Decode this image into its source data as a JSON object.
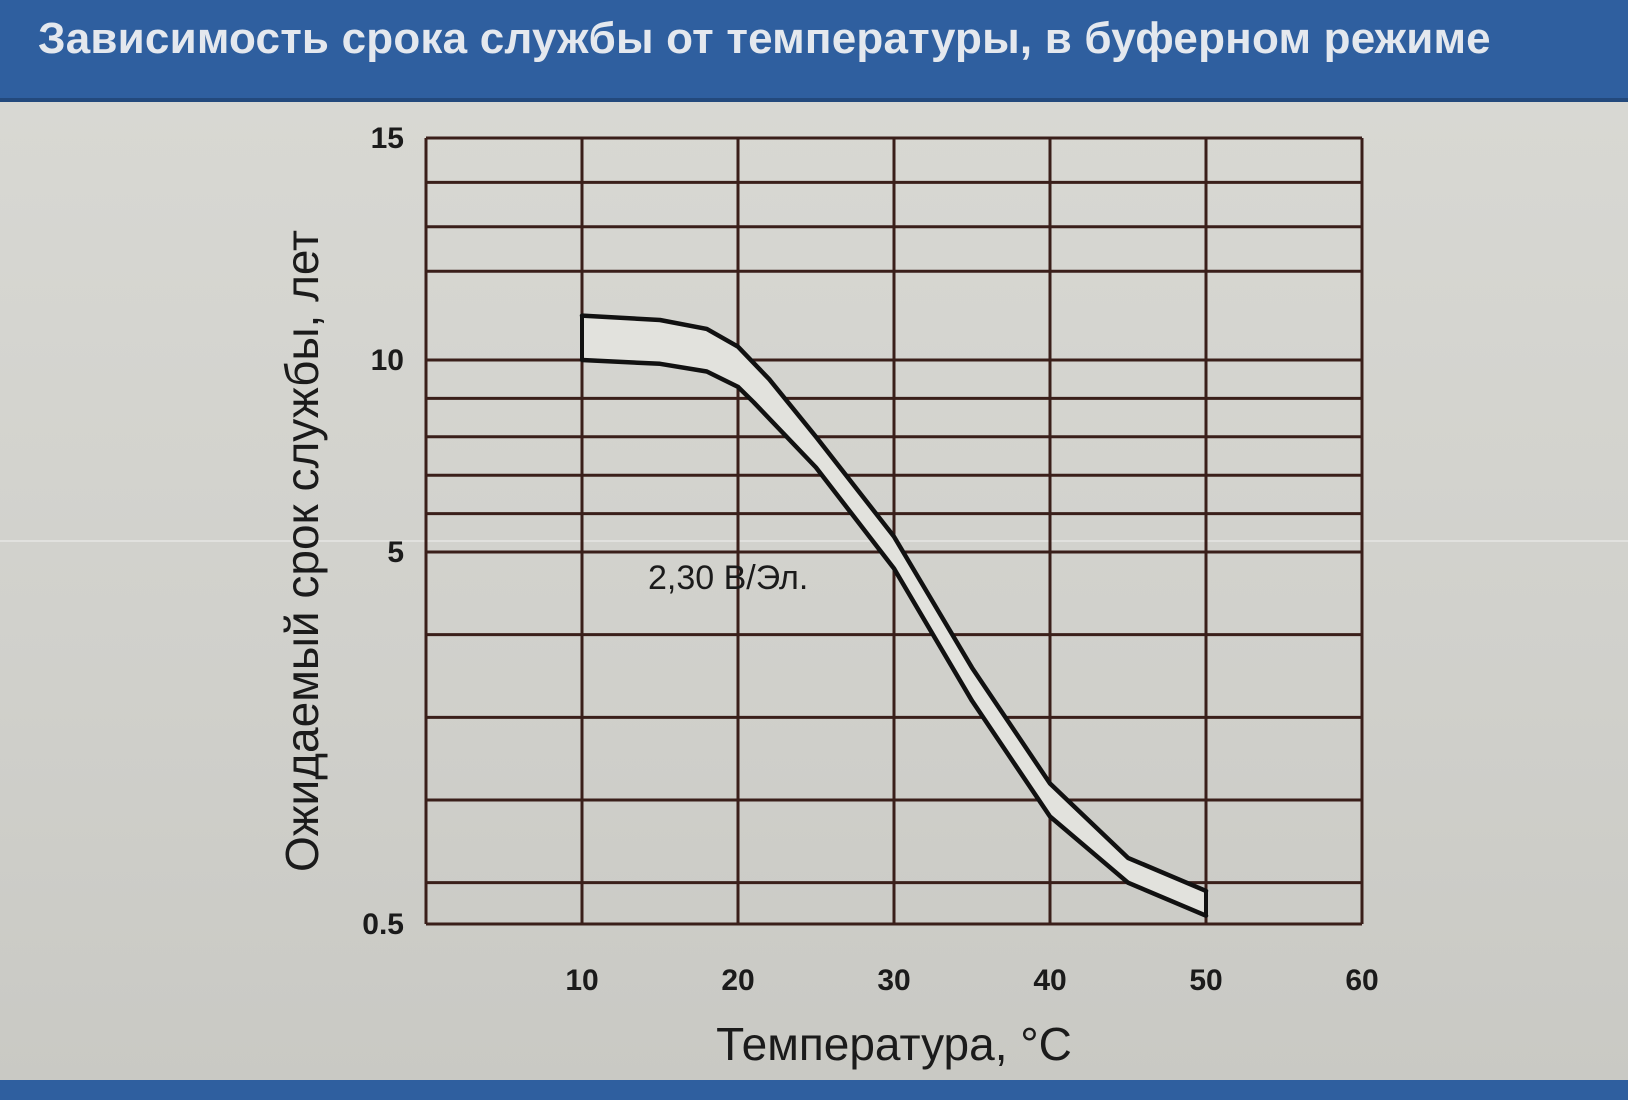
{
  "header": {
    "title": "Зависимость срока службы от температуры, в буферном режиме"
  },
  "colors": {
    "header_band": "#2f5f9f",
    "grid": "#3a1f1a",
    "curve": "#111111",
    "band_fill": "#e2e2dd"
  },
  "chart_data": {
    "type": "line",
    "title": "Зависимость срока службы от температуры, в буферном режиме",
    "xlabel": "Температура, °C",
    "ylabel": "Ожидаемый срок службы, лет",
    "xlim": [
      0,
      60
    ],
    "ylim": [
      0.5,
      15
    ],
    "x_ticks": [
      10,
      20,
      30,
      40,
      50,
      60
    ],
    "x_tick_labels": [
      "10",
      "20",
      "30",
      "40",
      "50",
      "60"
    ],
    "y_ticks": [
      0.5,
      5,
      10,
      15
    ],
    "y_tick_labels": [
      "0.5",
      "5",
      "10",
      "15"
    ],
    "grid": true,
    "grid_y_levels": [
      0.5,
      1,
      2,
      3,
      4,
      5,
      6,
      7,
      8,
      9,
      10,
      12,
      13,
      14,
      15
    ],
    "annotation": "2,30 В/Эл.",
    "series": [
      {
        "x": [
          10,
          15,
          18,
          20,
          22,
          25,
          30,
          35,
          40,
          45,
          50
        ],
        "y": [
          11,
          10.9,
          10.7,
          10.3,
          9.5,
          8.0,
          5.4,
          3.6,
          2.2,
          1.3,
          0.9
        ]
      },
      {
        "x": [
          10,
          15,
          18,
          20,
          21,
          25,
          30,
          35,
          40,
          45,
          50
        ],
        "y": [
          10,
          9.9,
          9.7,
          9.3,
          8.9,
          7.2,
          4.8,
          3.2,
          1.8,
          1.0,
          0.6
        ]
      }
    ]
  }
}
